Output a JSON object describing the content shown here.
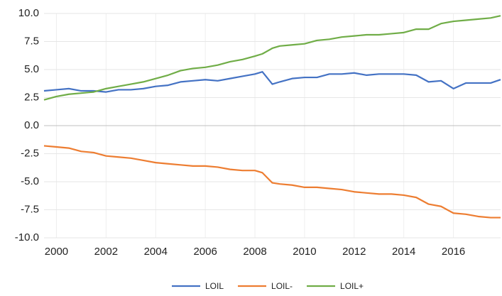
{
  "chart_data": {
    "type": "line",
    "x": [
      1999.5,
      2000,
      2000.5,
      2001,
      2001.5,
      2002,
      2002.5,
      2003,
      2003.5,
      2004,
      2004.5,
      2005,
      2005.5,
      2006,
      2006.5,
      2007,
      2007.5,
      2008,
      2008.3,
      2008.7,
      2009,
      2009.5,
      2010,
      2010.5,
      2011,
      2011.5,
      2012,
      2012.5,
      2013,
      2013.5,
      2014,
      2014.5,
      2015,
      2015.5,
      2016,
      2016.5,
      2017,
      2017.5,
      2017.9
    ],
    "series": [
      {
        "name": "LOIL",
        "color": "#4472c4",
        "values": [
          3.1,
          3.2,
          3.3,
          3.1,
          3.1,
          3.0,
          3.2,
          3.2,
          3.3,
          3.5,
          3.6,
          3.9,
          4.0,
          4.1,
          4.0,
          4.2,
          4.4,
          4.6,
          4.8,
          3.7,
          3.9,
          4.2,
          4.3,
          4.3,
          4.6,
          4.6,
          4.7,
          4.5,
          4.6,
          4.6,
          4.6,
          4.5,
          3.9,
          4.0,
          3.3,
          3.8,
          3.8,
          3.8,
          4.1
        ]
      },
      {
        "name": "LOIL-",
        "color": "#ed7d31",
        "values": [
          -1.8,
          -1.9,
          -2.0,
          -2.3,
          -2.4,
          -2.7,
          -2.8,
          -2.9,
          -3.1,
          -3.3,
          -3.4,
          -3.5,
          -3.6,
          -3.6,
          -3.7,
          -3.9,
          -4.0,
          -4.0,
          -4.2,
          -5.1,
          -5.2,
          -5.3,
          -5.5,
          -5.5,
          -5.6,
          -5.7,
          -5.9,
          -6.0,
          -6.1,
          -6.1,
          -6.2,
          -6.4,
          -7.0,
          -7.2,
          -7.8,
          -7.9,
          -8.1,
          -8.2,
          -8.2
        ]
      },
      {
        "name": "LOIL+",
        "color": "#70ad47",
        "values": [
          2.3,
          2.6,
          2.8,
          2.9,
          3.0,
          3.3,
          3.5,
          3.7,
          3.9,
          4.2,
          4.5,
          4.9,
          5.1,
          5.2,
          5.4,
          5.7,
          5.9,
          6.2,
          6.4,
          6.9,
          7.1,
          7.2,
          7.3,
          7.6,
          7.7,
          7.9,
          8.0,
          8.1,
          8.1,
          8.2,
          8.3,
          8.6,
          8.6,
          9.1,
          9.3,
          9.4,
          9.5,
          9.6,
          9.8
        ]
      }
    ],
    "xlim": [
      1999.5,
      2017.9
    ],
    "xticks": [
      2000,
      2002,
      2004,
      2006,
      2008,
      2010,
      2012,
      2014,
      2016
    ],
    "ylim": [
      -10,
      10
    ],
    "yticks": [
      {
        "value": -10,
        "label": "-10.0"
      },
      -7.5,
      {
        "value": -5,
        "label": "-5.0"
      },
      -2.5,
      {
        "value": 0,
        "label": "0.0"
      },
      2.5,
      {
        "value": 5,
        "label": "5.0"
      },
      7.5,
      {
        "value": 10,
        "label": "10.0"
      }
    ],
    "grid": true,
    "legend": "bottom"
  }
}
